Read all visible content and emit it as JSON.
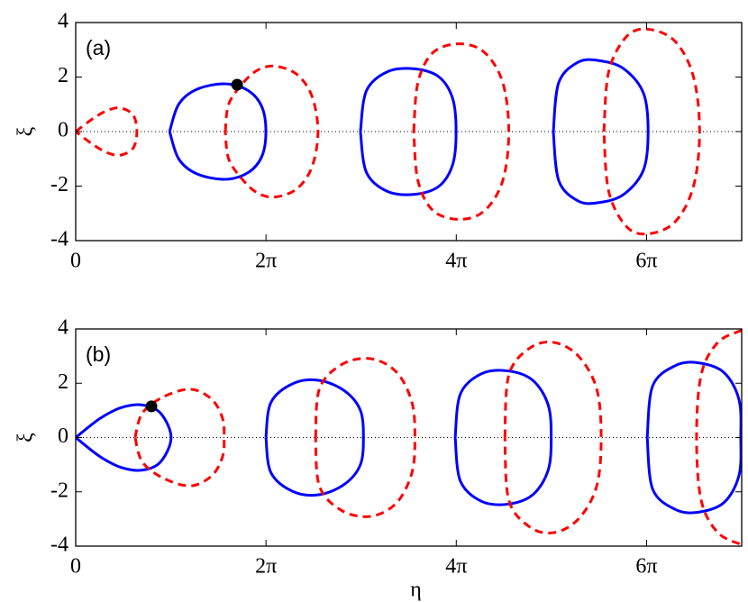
{
  "chart_data": [
    {
      "type": "line",
      "label": "(a)",
      "ylabel": "ξ",
      "xlim": [
        0,
        21.99
      ],
      "ylim": [
        -4,
        4
      ],
      "xticks": [
        0,
        {
          "value": 6.283,
          "label": "2π"
        },
        {
          "value": 12.566,
          "label": "4π"
        },
        {
          "value": 18.85,
          "label": "6π"
        }
      ],
      "yticks": [
        -4,
        -2,
        0,
        2,
        4
      ],
      "hline": 0,
      "series": [
        {
          "color": "#ff0000",
          "style": "dashed",
          "x": [
            0,
            0.6,
            1.1,
            1.5,
            1.9,
            2.02,
            1.9,
            1.5,
            1.1,
            0.6,
            0
          ],
          "values": [
            0,
            0.5,
            0.8,
            0.86,
            0.6,
            0,
            -0.6,
            -0.86,
            -0.8,
            -0.5,
            0
          ]
        },
        {
          "color": "#0000ff",
          "style": "solid",
          "x": [
            3.1,
            3.4,
            4.0,
            4.94,
            5.7,
            6.15,
            6.28,
            6.15,
            5.7,
            4.94,
            4.0,
            3.4,
            3.1
          ],
          "values": [
            0,
            1.0,
            1.55,
            1.75,
            1.5,
            0.9,
            0,
            -0.9,
            -1.5,
            -1.75,
            -1.55,
            -1.0,
            0
          ]
        },
        {
          "color": "#ff0000",
          "style": "dashed",
          "x": [
            4.94,
            5.05,
            5.5,
            6.0,
            6.58,
            7.3,
            7.8,
            8.0,
            7.8,
            7.3,
            6.58,
            6.0,
            5.5,
            5.05,
            4.94
          ],
          "values": [
            0,
            1.0,
            1.75,
            2.25,
            2.4,
            2.1,
            1.3,
            0,
            -1.3,
            -2.1,
            -2.4,
            -2.25,
            -1.75,
            -1.0,
            0
          ]
        },
        {
          "color": "#0000ff",
          "style": "solid",
          "x": [
            9.4,
            9.6,
            10.3,
            11.2,
            12.0,
            12.45,
            12.56,
            12.45,
            12.0,
            11.2,
            10.3,
            9.6,
            9.4
          ],
          "values": [
            0,
            1.5,
            2.2,
            2.3,
            2.0,
            1.2,
            0,
            -1.2,
            -2.0,
            -2.3,
            -2.2,
            -1.5,
            0
          ]
        },
        {
          "color": "#ff0000",
          "style": "dashed",
          "x": [
            11.16,
            11.3,
            11.8,
            12.68,
            13.5,
            14.1,
            14.3,
            14.1,
            13.5,
            12.68,
            11.8,
            11.3,
            11.16
          ],
          "values": [
            0,
            1.8,
            2.9,
            3.22,
            2.9,
            1.8,
            0,
            -1.8,
            -2.9,
            -3.22,
            -2.9,
            -1.8,
            0
          ]
        },
        {
          "color": "#0000ff",
          "style": "solid",
          "x": [
            15.77,
            15.95,
            16.6,
            17.3,
            18.1,
            18.75,
            18.9,
            18.75,
            18.1,
            17.3,
            16.6,
            15.95,
            15.77
          ],
          "values": [
            0,
            1.8,
            2.55,
            2.6,
            2.3,
            1.4,
            0,
            -1.4,
            -2.3,
            -2.6,
            -2.55,
            -1.8,
            0
          ]
        },
        {
          "color": "#ff0000",
          "style": "dashed",
          "x": [
            17.44,
            17.6,
            18.2,
            18.93,
            19.8,
            20.4,
            20.6,
            20.4,
            19.8,
            18.93,
            18.2,
            17.6,
            17.44
          ],
          "values": [
            0,
            2.2,
            3.5,
            3.75,
            3.3,
            2.0,
            0,
            -2.0,
            -3.3,
            -3.75,
            -3.5,
            -2.2,
            0
          ]
        }
      ],
      "points": [
        {
          "x": 5.33,
          "y": 1.72,
          "color": "#000000"
        }
      ]
    },
    {
      "type": "line",
      "label": "(b)",
      "ylabel": "ξ",
      "xlabel": "η",
      "xlim": [
        0,
        21.99
      ],
      "ylim": [
        -4,
        4
      ],
      "xticks": [
        0,
        {
          "value": 6.283,
          "label": "2π"
        },
        {
          "value": 12.566,
          "label": "4π"
        },
        {
          "value": 18.85,
          "label": "6π"
        }
      ],
      "yticks": [
        -4,
        -2,
        0,
        2,
        4
      ],
      "hline": 0,
      "series": [
        {
          "color": "#0000ff",
          "style": "solid",
          "x": [
            0,
            0.8,
            1.5,
            2.2,
            2.8,
            3.15,
            2.8,
            2.2,
            1.5,
            0.8,
            0
          ],
          "values": [
            0,
            0.7,
            1.1,
            1.2,
            0.9,
            0,
            -0.9,
            -1.2,
            -1.1,
            -0.7,
            0
          ]
        },
        {
          "color": "#ff0000",
          "style": "dashed",
          "x": [
            1.96,
            2.2,
            2.9,
            3.8,
            4.5,
            4.85,
            4.9,
            4.85,
            4.5,
            3.8,
            2.9,
            2.2,
            1.96
          ],
          "values": [
            0,
            0.9,
            1.5,
            1.78,
            1.4,
            0.7,
            0,
            -0.7,
            -1.4,
            -1.78,
            -1.5,
            -0.9,
            0
          ]
        },
        {
          "color": "#0000ff",
          "style": "solid",
          "x": [
            6.28,
            6.45,
            7.2,
            8.07,
            8.9,
            9.4,
            9.5,
            9.4,
            8.9,
            8.07,
            7.2,
            6.45,
            6.28
          ],
          "values": [
            0,
            1.3,
            2.0,
            2.1,
            1.7,
            1.0,
            0,
            -1.0,
            -1.7,
            -2.1,
            -2.0,
            -1.3,
            0
          ]
        },
        {
          "color": "#ff0000",
          "style": "dashed",
          "x": [
            7.92,
            8.05,
            8.8,
            9.76,
            10.6,
            11.1,
            11.2,
            11.1,
            10.6,
            9.76,
            8.8,
            8.05,
            7.92
          ],
          "values": [
            0,
            1.8,
            2.7,
            2.9,
            2.4,
            1.3,
            0,
            -1.3,
            -2.4,
            -2.9,
            -2.7,
            -1.8,
            0
          ]
        },
        {
          "color": "#0000ff",
          "style": "solid",
          "x": [
            12.53,
            12.7,
            13.4,
            14.3,
            15.1,
            15.6,
            15.7,
            15.6,
            15.1,
            14.3,
            13.4,
            12.7,
            12.53
          ],
          "values": [
            0,
            1.6,
            2.35,
            2.45,
            2.1,
            1.2,
            0,
            -1.2,
            -2.1,
            -2.45,
            -2.35,
            -1.6,
            0
          ]
        },
        {
          "color": "#ff0000",
          "style": "dashed",
          "x": [
            14.17,
            14.3,
            15.0,
            15.8,
            16.6,
            17.2,
            17.35,
            17.2,
            16.6,
            15.8,
            15.0,
            14.3,
            14.17
          ],
          "values": [
            0,
            2.3,
            3.3,
            3.5,
            3.0,
            1.8,
            0,
            -1.8,
            -3.0,
            -3.5,
            -3.3,
            -2.3,
            0
          ]
        },
        {
          "color": "#0000ff",
          "style": "solid",
          "x": [
            18.87,
            19.05,
            19.8,
            20.56,
            21.4,
            21.9,
            21.96,
            21.9,
            21.4,
            20.56,
            19.8,
            19.05,
            18.87
          ],
          "values": [
            0,
            1.9,
            2.65,
            2.75,
            2.4,
            1.4,
            0,
            -1.4,
            -2.4,
            -2.75,
            -2.65,
            -1.9,
            0
          ]
        },
        {
          "color": "#ff0000",
          "style": "dashed",
          "x": [
            21.99,
            21.2,
            20.65,
            20.5,
            20.65,
            21.2,
            21.99
          ],
          "values": [
            3.95,
            3.5,
            2.3,
            0,
            -2.3,
            -3.5,
            -3.95
          ]
        }
      ],
      "points": [
        {
          "x": 2.5,
          "y": 1.15,
          "color": "#000000"
        }
      ]
    }
  ]
}
